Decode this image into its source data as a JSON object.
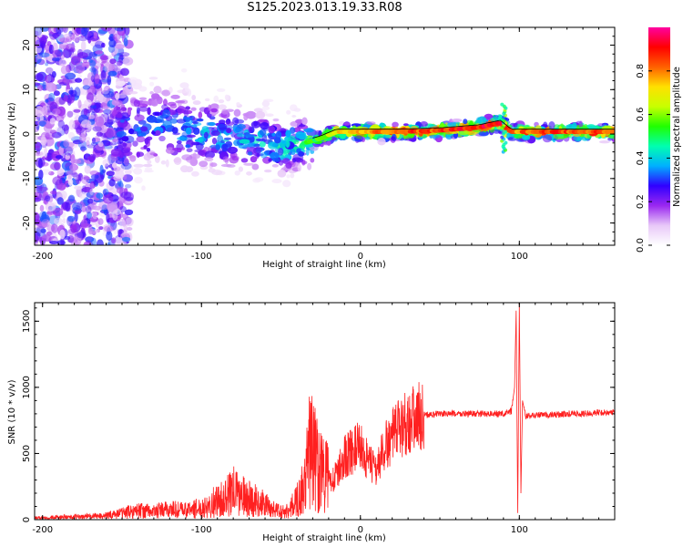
{
  "title": "S125.2023.013.19.33.R08",
  "chart_data": [
    {
      "type": "heatmap",
      "xlabel": "Height of straight line (km)",
      "ylabel": "Frequency (Hz)",
      "xlim": [
        -205,
        160
      ],
      "ylim": [
        -25,
        24
      ],
      "x_ticks": [
        -200,
        -100,
        0,
        100
      ],
      "y_ticks": [
        -20,
        -10,
        0,
        10,
        20
      ],
      "colorbar": {
        "label": "Normalized spectral amplitude",
        "range": [
          0,
          1
        ],
        "ticks": [
          0.0,
          0.2,
          0.4,
          0.6,
          0.8
        ],
        "colormap": [
          "#ffffff",
          "#e8c8f8",
          "#9a28f0",
          "#3000ff",
          "#00b0ff",
          "#00ffb0",
          "#20ff00",
          "#c8ff00",
          "#ffe000",
          "#ff6000",
          "#ff0000",
          "#ff00a0"
        ]
      },
      "ridge": [
        {
          "x": -150,
          "f": 0.5,
          "amp": 0.35
        },
        {
          "x": -125,
          "f": 2.0,
          "amp": 0.35
        },
        {
          "x": -100,
          "f": 0.0,
          "amp": 0.4
        },
        {
          "x": -75,
          "f": -1.0,
          "amp": 0.4
        },
        {
          "x": -50,
          "f": -3.0,
          "amp": 0.45
        },
        {
          "x": -35,
          "f": -2.0,
          "amp": 0.5
        },
        {
          "x": -25,
          "f": -1.0,
          "amp": 0.55
        },
        {
          "x": -15,
          "f": 0.5,
          "amp": 0.7
        },
        {
          "x": 0,
          "f": 0.5,
          "amp": 0.8
        },
        {
          "x": 25,
          "f": 0.5,
          "amp": 0.85
        },
        {
          "x": 50,
          "f": 0.8,
          "amp": 0.85
        },
        {
          "x": 75,
          "f": 1.5,
          "amp": 0.9
        },
        {
          "x": 88,
          "f": 2.5,
          "amp": 0.95
        },
        {
          "x": 95,
          "f": 0.5,
          "amp": 0.8
        },
        {
          "x": 125,
          "f": 0.5,
          "amp": 0.85
        },
        {
          "x": 160,
          "f": 0.5,
          "amp": 0.85
        }
      ]
    },
    {
      "type": "line",
      "xlabel": "Height of straight line (km)",
      "ylabel": "SNR (10 * v/v)",
      "xlim": [
        -205,
        160
      ],
      "ylim": [
        0,
        1640
      ],
      "x_ticks": [
        -200,
        -100,
        0,
        100
      ],
      "y_ticks": [
        0,
        500,
        1000,
        1500
      ],
      "color": "#ff2020",
      "series": [
        {
          "x": [
            -205,
            -180,
            -160,
            -150,
            -140,
            -130,
            -120,
            -110,
            -100,
            -95,
            -90,
            -85,
            -80,
            -75,
            -70,
            -65,
            -60,
            -55,
            -50,
            -45,
            -40,
            -35,
            -32,
            -28,
            -25,
            -20,
            -15,
            -10,
            -5,
            0,
            5,
            10,
            15,
            20,
            25,
            30,
            35,
            40,
            50,
            60,
            70,
            80,
            90,
            95,
            97,
            98,
            99,
            100,
            101,
            102,
            104,
            110,
            120,
            130,
            140,
            150,
            160
          ],
          "values": [
            15,
            20,
            30,
            50,
            70,
            60,
            80,
            70,
            90,
            120,
            140,
            160,
            220,
            180,
            160,
            140,
            110,
            80,
            60,
            70,
            150,
            250,
            550,
            450,
            380,
            300,
            330,
            480,
            520,
            560,
            430,
            380,
            540,
            620,
            700,
            750,
            770,
            790,
            800,
            800,
            800,
            800,
            800,
            820,
            1000,
            1580,
            50,
            1640,
            200,
            900,
            780,
            790,
            790,
            800,
            800,
            810,
            810
          ]
        }
      ]
    }
  ]
}
